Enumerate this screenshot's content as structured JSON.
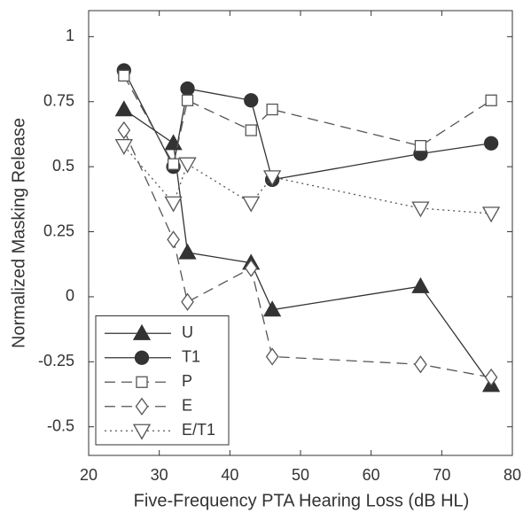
{
  "chart_data": {
    "type": "line",
    "xlabel": "Five-Frequency PTA Hearing Loss (dB HL)",
    "ylabel": "Normalized Masking Release",
    "xlim": [
      20,
      80
    ],
    "xticks": [
      20,
      30,
      40,
      50,
      60,
      70,
      80
    ],
    "ylim": [
      -0.61,
      1.1
    ],
    "yticks": [
      -0.5,
      -0.25,
      0,
      0.25,
      0.5,
      0.75,
      1
    ],
    "grid": false,
    "legend": "lower left",
    "series": [
      {
        "name": "U",
        "color": "#333333",
        "marker": "triangle-up",
        "filled": true,
        "line_style": "solid",
        "x": [
          25,
          32,
          34,
          43,
          46,
          67,
          77
        ],
        "values": [
          0.72,
          0.59,
          0.17,
          0.13,
          -0.05,
          0.04,
          -0.34
        ]
      },
      {
        "name": "T1",
        "color": "#333333",
        "marker": "circle",
        "filled": true,
        "line_style": "solid",
        "x": [
          25,
          32,
          34,
          43,
          46,
          67,
          77
        ],
        "values": [
          0.87,
          0.5,
          0.8,
          0.755,
          0.45,
          0.55,
          0.59
        ]
      },
      {
        "name": "P",
        "color": "#555555",
        "marker": "square",
        "filled": false,
        "line_style": "dashed",
        "x": [
          25,
          32,
          34,
          43,
          46,
          67,
          77
        ],
        "values": [
          0.85,
          0.51,
          0.755,
          0.64,
          0.72,
          0.58,
          0.755
        ]
      },
      {
        "name": "E",
        "color": "#555555",
        "marker": "diamond",
        "filled": false,
        "line_style": "dashed",
        "x": [
          25,
          32,
          34,
          43,
          46,
          67,
          77
        ],
        "values": [
          0.64,
          0.22,
          -0.02,
          0.11,
          -0.23,
          -0.26,
          -0.31
        ]
      },
      {
        "name": "E/T1",
        "color": "#555555",
        "marker": "triangle-down",
        "filled": false,
        "line_style": "dotted",
        "x": [
          25,
          32,
          34,
          43,
          46,
          67,
          77
        ],
        "values": [
          0.58,
          0.36,
          0.51,
          0.36,
          0.46,
          0.34,
          0.32
        ]
      }
    ]
  }
}
